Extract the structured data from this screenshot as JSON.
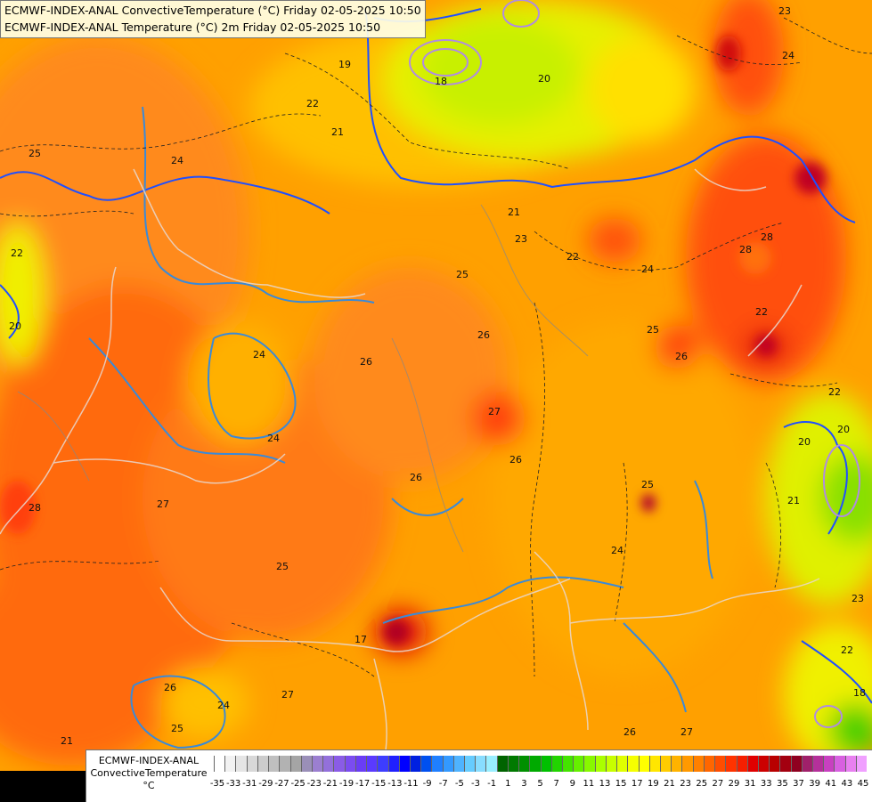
{
  "title_lines": [
    "ECMWF-INDEX-ANAL ConvectiveTemperature (°C) Friday 02-05-2025 10:50",
    "ECMWF-INDEX-ANAL Temperature (°C) 2m Friday 02-05-2025 10:50"
  ],
  "legend": {
    "line1": "ECMWF-INDEX-ANAL",
    "line2": "ConvectiveTemperature",
    "line3": "°C",
    "ticks": [
      "-35",
      "-33",
      "-31",
      "-29",
      "-27",
      "-25",
      "-23",
      "-21",
      "-19",
      "-17",
      "-15",
      "-13",
      "-11",
      "-9",
      "-7",
      "-5",
      "-3",
      "-1",
      "1",
      "3",
      "5",
      "7",
      "9",
      "11",
      "13",
      "15",
      "17",
      "19",
      "21",
      "23",
      "25",
      "27",
      "29",
      "31",
      "33",
      "35",
      "37",
      "39",
      "41",
      "43",
      "45"
    ],
    "colors": [
      "#ffffff",
      "#f2f2f2",
      "#e5e5e5",
      "#d8d8d8",
      "#cccccc",
      "#bfbfbf",
      "#b2b2b2",
      "#a5a5a5",
      "#9a8fb8",
      "#9b7fd0",
      "#9370db",
      "#8a5ce6",
      "#7b4cf0",
      "#6a3df5",
      "#5a3aff",
      "#3d3dff",
      "#2020ff",
      "#0000ff",
      "#0020e0",
      "#0050f0",
      "#1f7fff",
      "#3399ff",
      "#4fb3ff",
      "#66ccff",
      "#88ddff",
      "#99eeff",
      "#006400",
      "#007a00",
      "#009000",
      "#00aa00",
      "#00c000",
      "#22d400",
      "#44e400",
      "#66f000",
      "#88f800",
      "#aaff00",
      "#c8ff00",
      "#e0ff00",
      "#f5ff00",
      "#ffff00",
      "#ffe600",
      "#ffcc00",
      "#ffb300",
      "#ff9900",
      "#ff8000",
      "#ff6600",
      "#ff4d00",
      "#ff3300",
      "#f51f00",
      "#e00000",
      "#cc0000",
      "#b80000",
      "#a30010",
      "#8f0020",
      "#a0206a",
      "#b5309a",
      "#c840c0",
      "#d860e0",
      "#e880f0",
      "#f0a0ff"
    ]
  },
  "contour_labels": [
    "19",
    "18",
    "20",
    "23",
    "24",
    "22",
    "21",
    "25",
    "22",
    "20",
    "24",
    "28",
    "21",
    "23",
    "22",
    "24",
    "25",
    "26",
    "28",
    "22",
    "24",
    "26",
    "27",
    "26",
    "24",
    "27",
    "26",
    "25",
    "22",
    "20",
    "20",
    "21",
    "23",
    "25",
    "24",
    "26",
    "25",
    "28",
    "21",
    "27",
    "26",
    "24",
    "25",
    "27",
    "26",
    "22",
    "17",
    "18"
  ]
}
